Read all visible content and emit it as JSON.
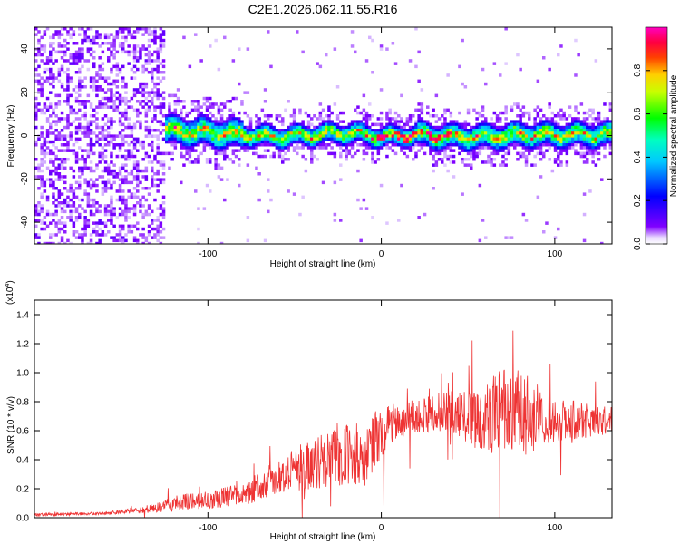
{
  "title": "C2E1.2026.062.11.55.R16",
  "chart_data": [
    {
      "type": "heatmap",
      "title": "C2E1.2026.062.11.55.R16",
      "xlabel": "Height of straight line (km)",
      "ylabel": "Frequency (Hz)",
      "xlim": [
        -200,
        133
      ],
      "ylim": [
        -50,
        50
      ],
      "x_ticks": [
        -100,
        0,
        100
      ],
      "x_tick_labels": [
        "-100",
        "0",
        "100"
      ],
      "y_ticks": [
        -40,
        -20,
        0,
        20,
        40
      ],
      "y_tick_labels": [
        "-40",
        "-20",
        "0",
        "20",
        "40"
      ],
      "colorbar": {
        "label": "Normalized spectral amplitude",
        "range": [
          0,
          1
        ],
        "ticks": [
          0.0,
          0.2,
          0.4,
          0.6,
          0.8
        ],
        "tick_labels": [
          "0.0",
          "0.2",
          "0.4",
          "0.6",
          "0.8"
        ],
        "colormap": "rainbow (violet-blue-cyan-green-yellow-red-magenta)"
      },
      "centerline": {
        "x": [
          -120,
          -100,
          -80,
          -60,
          -40,
          -20,
          0,
          20,
          40,
          60,
          80,
          100,
          133
        ],
        "freq": [
          3,
          2,
          1,
          0,
          1,
          2,
          0,
          1,
          0,
          0,
          1,
          1,
          1
        ]
      },
      "colors": [
        "#8000ff",
        "#0000ff",
        "#00ffff",
        "#00ff00",
        "#ffff00",
        "#ff0000",
        "#ff00ff"
      ]
    },
    {
      "type": "line",
      "xlabel": "Height of straight line (km)",
      "ylabel": "SNR (10 * v/v)",
      "scale_label": "(x10",
      "scale_exponent": "4",
      "xlim": [
        -200,
        133
      ],
      "ylim": [
        0,
        1.5
      ],
      "x_ticks": [
        -100,
        0,
        100
      ],
      "x_tick_labels": [
        "-100",
        "0",
        "100"
      ],
      "y_ticks": [
        0.0,
        0.2,
        0.4,
        0.6,
        0.8,
        1.0,
        1.2,
        1.4
      ],
      "y_tick_labels": [
        "0.0",
        "0.2",
        "0.4",
        "0.6",
        "0.8",
        "1.0",
        "1.2",
        "1.4"
      ],
      "series": [
        {
          "name": "SNR",
          "color": "#ee3333",
          "envelope_x": [
            -200,
            -160,
            -140,
            -125,
            -120,
            -100,
            -80,
            -60,
            -40,
            -20,
            -10,
            0,
            10,
            20,
            40,
            55,
            60,
            70,
            80,
            90,
            100,
            110,
            120,
            133
          ],
          "envelope_mean": [
            0.02,
            0.03,
            0.05,
            0.08,
            0.1,
            0.12,
            0.16,
            0.28,
            0.38,
            0.42,
            0.45,
            0.58,
            0.66,
            0.7,
            0.74,
            0.68,
            0.7,
            0.75,
            0.74,
            0.7,
            0.66,
            0.68,
            0.66,
            0.68
          ],
          "envelope_amp": [
            0.01,
            0.01,
            0.02,
            0.04,
            0.06,
            0.06,
            0.08,
            0.12,
            0.18,
            0.22,
            0.24,
            0.18,
            0.12,
            0.12,
            0.14,
            0.22,
            0.26,
            0.3,
            0.28,
            0.24,
            0.16,
            0.14,
            0.12,
            0.1
          ]
        }
      ]
    }
  ]
}
